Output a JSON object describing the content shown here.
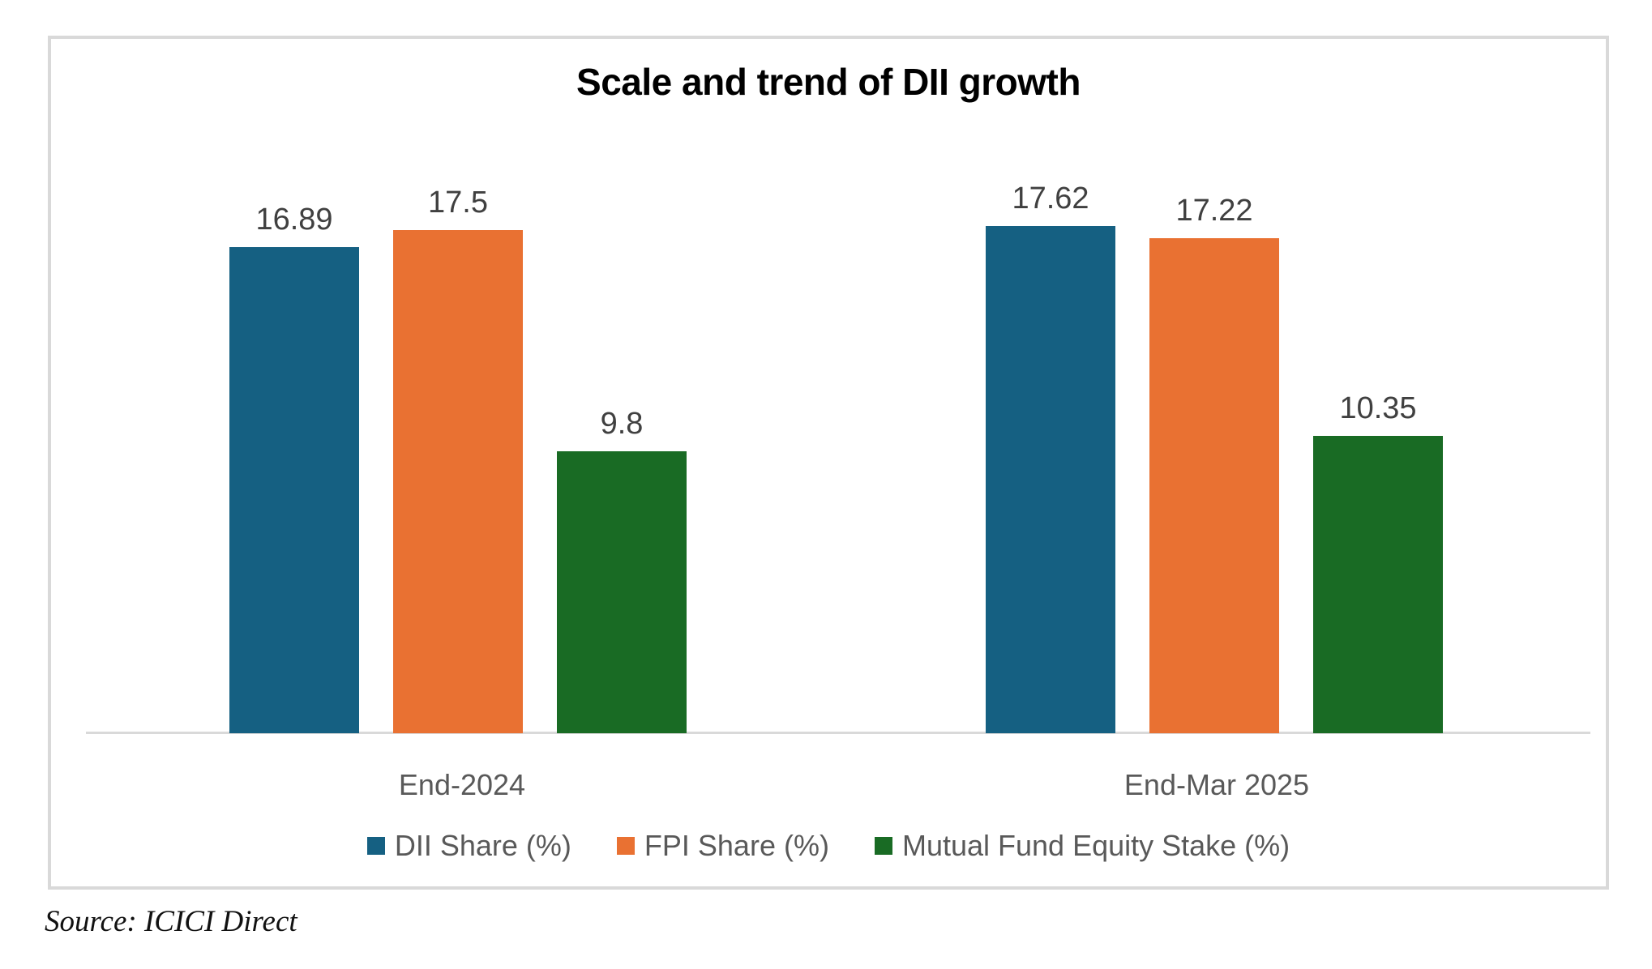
{
  "page": {
    "source_note": "Source: ICICI Direct"
  },
  "colors": {
    "dii_blue": "#156082",
    "fpi_orange": "#E97132",
    "mf_green": "#196B24",
    "axis_line": "#D9D9D9",
    "frame_border": "#D9D9D9",
    "value_label_text": "#404040",
    "axis_text": "#595959",
    "title_text": "#000000"
  },
  "chart_data": {
    "type": "bar",
    "title": "Scale and trend of DII growth",
    "categories": [
      "End-2024",
      "End-Mar 2025"
    ],
    "series": [
      {
        "name": "DII Share (%)",
        "color": "#156082",
        "values": [
          16.89,
          17.62
        ]
      },
      {
        "name": "FPI Share (%)",
        "color": "#E97132",
        "values": [
          17.5,
          17.22
        ]
      },
      {
        "name": "Mutual Fund Equity Stake (%)",
        "color": "#196B24",
        "values": [
          9.8,
          10.35
        ]
      }
    ],
    "value_labels": [
      [
        "16.89",
        "17.5",
        "9.8"
      ],
      [
        "17.62",
        "17.22",
        "10.35"
      ]
    ],
    "xlabel": "",
    "ylabel": "",
    "ylim": [
      0,
      20
    ],
    "grid": false,
    "axis_ticks_visible": false,
    "legend_position": "bottom"
  }
}
